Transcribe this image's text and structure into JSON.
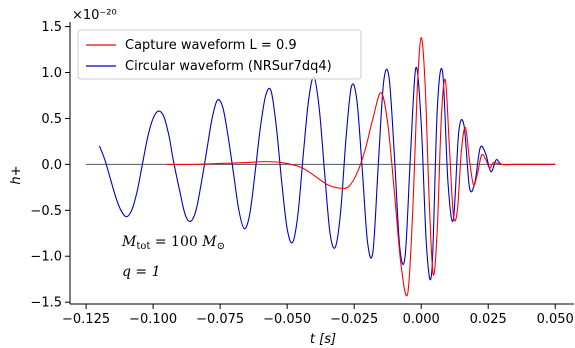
{
  "chart_data": {
    "type": "line",
    "title": "",
    "xlabel": "t [s]",
    "ylabel": "h+",
    "y_scale_label": "×10⁻²⁰",
    "xlim": [
      -0.131,
      0.057
    ],
    "ylim": [
      -1.52,
      1.55
    ],
    "xticks": [
      -0.125,
      -0.1,
      -0.075,
      -0.05,
      -0.025,
      0.0,
      0.025,
      0.05
    ],
    "xtick_labels": [
      "−0.125",
      "−0.100",
      "−0.075",
      "−0.050",
      "−0.025",
      "0.000",
      "0.025",
      "0.050"
    ],
    "yticks": [
      -1.5,
      -1.0,
      -0.5,
      0.0,
      0.5,
      1.0,
      1.5
    ],
    "ytick_labels": [
      "−1.5",
      "−1.0",
      "−0.5",
      "0.0",
      "0.5",
      "1.0",
      "1.5"
    ],
    "legend_position": "top-left",
    "grid": false,
    "zero_line": {
      "x_from": -0.125,
      "x_to": 0.05,
      "color": "#555555"
    },
    "series": [
      {
        "name": "Capture waveform  L = 0.9",
        "color": "#ff0000",
        "x": [
          -0.095,
          -0.085,
          -0.075,
          -0.065,
          -0.058,
          -0.052,
          -0.045,
          -0.04,
          -0.035,
          -0.03,
          -0.027,
          -0.024,
          -0.021,
          -0.018,
          -0.015,
          -0.0125,
          -0.01,
          -0.0075,
          -0.005,
          -0.003,
          -0.0015,
          0.0,
          0.0015,
          0.003,
          0.0045,
          0.006,
          0.0075,
          0.009,
          0.0105,
          0.012,
          0.0135,
          0.015,
          0.0165,
          0.018,
          0.0195,
          0.021,
          0.0225,
          0.024,
          0.0255,
          0.027,
          0.03,
          0.035,
          0.04,
          0.05
        ],
        "y": [
          0.0,
          0.0,
          0.01,
          0.02,
          0.03,
          0.02,
          -0.03,
          -0.12,
          -0.22,
          -0.26,
          -0.24,
          -0.1,
          0.15,
          0.5,
          0.78,
          0.45,
          -0.3,
          -1.1,
          -1.4,
          -0.4,
          0.8,
          1.38,
          0.85,
          -0.4,
          -1.2,
          -0.7,
          0.5,
          0.92,
          0.2,
          -0.55,
          -0.5,
          0.15,
          0.4,
          0.05,
          -0.22,
          -0.1,
          0.1,
          0.06,
          -0.04,
          0.02,
          0.0,
          0.0,
          0.0,
          0.0
        ]
      },
      {
        "name": "Circular waveform (NRSur7dq4)",
        "color": "#0000cc",
        "x": [
          -0.12,
          -0.118,
          -0.116,
          -0.114,
          -0.112,
          -0.11,
          -0.108,
          -0.106,
          -0.104,
          -0.102,
          -0.1,
          -0.098,
          -0.096,
          -0.094,
          -0.0925,
          -0.09,
          -0.088,
          -0.086,
          -0.084,
          -0.082,
          -0.08,
          -0.078,
          -0.076,
          -0.074,
          -0.072,
          -0.07,
          -0.068,
          -0.066,
          -0.064,
          -0.062,
          -0.06,
          -0.058,
          -0.056,
          -0.054,
          -0.052,
          -0.05,
          -0.048,
          -0.046,
          -0.044,
          -0.042,
          -0.04,
          -0.038,
          -0.036,
          -0.034,
          -0.032,
          -0.03,
          -0.028,
          -0.026,
          -0.024,
          -0.022,
          -0.02,
          -0.018,
          -0.016,
          -0.014,
          -0.012,
          -0.01,
          -0.008,
          -0.006,
          -0.004,
          -0.002,
          0.0,
          0.002,
          0.004,
          0.006,
          0.008,
          0.01,
          0.012,
          0.014,
          0.016,
          0.018,
          0.02,
          0.022,
          0.024,
          0.026,
          0.028,
          0.03,
          0.035,
          0.04,
          0.05
        ],
        "y": [
          0.2,
          0.05,
          -0.15,
          -0.35,
          -0.5,
          -0.57,
          -0.5,
          -0.3,
          0.0,
          0.3,
          0.5,
          0.58,
          0.52,
          0.3,
          0.05,
          -0.3,
          -0.55,
          -0.62,
          -0.5,
          -0.2,
          0.15,
          0.5,
          0.7,
          0.62,
          0.3,
          -0.1,
          -0.5,
          -0.7,
          -0.55,
          -0.1,
          0.4,
          0.75,
          0.8,
          0.4,
          -0.2,
          -0.7,
          -0.85,
          -0.55,
          0.1,
          0.7,
          0.95,
          0.6,
          -0.1,
          -0.75,
          -0.9,
          -0.5,
          0.3,
          0.85,
          0.7,
          -0.05,
          -0.85,
          -0.95,
          0.0,
          0.9,
          0.95,
          0.1,
          -0.9,
          -1.0,
          0.1,
          1.05,
          0.45,
          -0.9,
          -1.15,
          0.6,
          1.0,
          -0.2,
          -0.6,
          0.35,
          0.42,
          -0.25,
          -0.2,
          0.18,
          0.12,
          -0.08,
          0.05,
          0.0,
          0.0,
          0.0,
          0.0
        ]
      }
    ]
  },
  "legend": {
    "items": [
      {
        "label": "Capture waveform  L = 0.9",
        "color": "#ff0000"
      },
      {
        "label": "Circular waveform (NRSur7dq4)",
        "color": "#0000cc"
      }
    ]
  },
  "annotations": {
    "mass": "M_tot = 100 M_⊙",
    "mass_base": "M",
    "mass_sub": "tot",
    "mass_eq": " = 100 ",
    "mass_sun": "M",
    "mass_sun_sub": "⊙",
    "q": "q = 1"
  }
}
